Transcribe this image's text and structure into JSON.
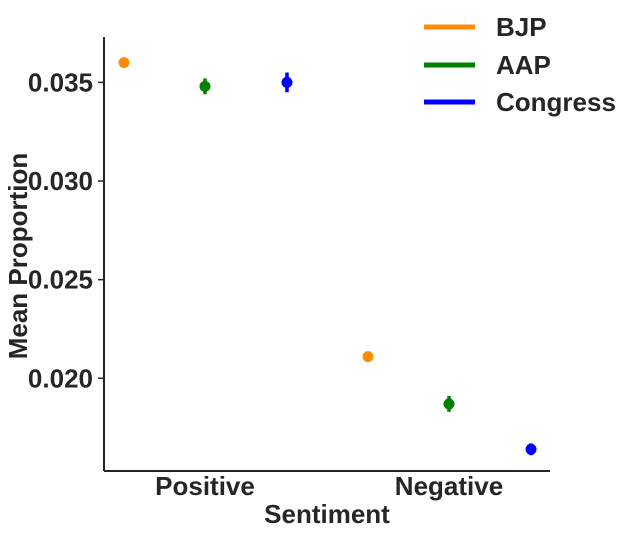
{
  "chart_data": {
    "type": "scatter",
    "title": "",
    "xlabel": "Sentiment",
    "ylabel": "Mean Proportion",
    "categories": [
      "Positive",
      "Negative"
    ],
    "ylim": [
      0.0153,
      0.0373
    ],
    "yticks": [
      0.02,
      0.025,
      0.03,
      0.035
    ],
    "ytick_labels": [
      "0.020",
      "0.025",
      "0.030",
      "0.035"
    ],
    "grid": false,
    "legend_position": "top-right",
    "series": [
      {
        "name": "BJP",
        "color": "#ff8c00",
        "values": [
          0.036,
          0.0211
        ],
        "errors": [
          0.0002,
          0.0001
        ]
      },
      {
        "name": "AAP",
        "color": "#008000",
        "values": [
          0.0348,
          0.0187
        ],
        "errors": [
          0.0004,
          0.0004
        ]
      },
      {
        "name": "Congress",
        "color": "#0000ff",
        "values": [
          0.035,
          0.0164
        ],
        "errors": [
          0.0005,
          0.0003
        ]
      }
    ]
  }
}
